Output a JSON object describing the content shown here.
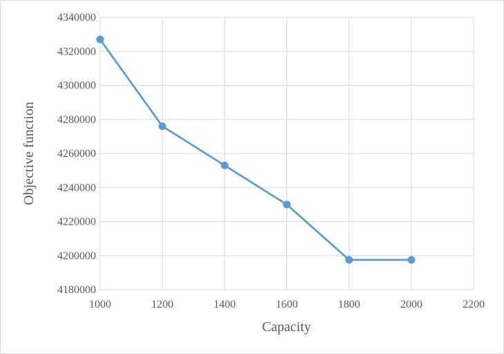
{
  "chart_data": {
    "type": "line",
    "title": "",
    "xlabel": "Capacity",
    "ylabel": "Objective function",
    "xlim": [
      1000,
      2200
    ],
    "ylim": [
      4180000,
      4340000
    ],
    "x_ticks": [
      1000,
      1200,
      1400,
      1600,
      1800,
      2000,
      2200
    ],
    "y_ticks": [
      4180000,
      4200000,
      4220000,
      4240000,
      4260000,
      4280000,
      4300000,
      4320000,
      4340000
    ],
    "grid": true,
    "legend": "none",
    "series": [
      {
        "color": "#5b9bd5",
        "x": [
          1000,
          1200,
          1400,
          1600,
          1800,
          2000
        ],
        "y": [
          4327000,
          4276000,
          4253000,
          4230000,
          4197500,
          4197500
        ]
      }
    ]
  }
}
